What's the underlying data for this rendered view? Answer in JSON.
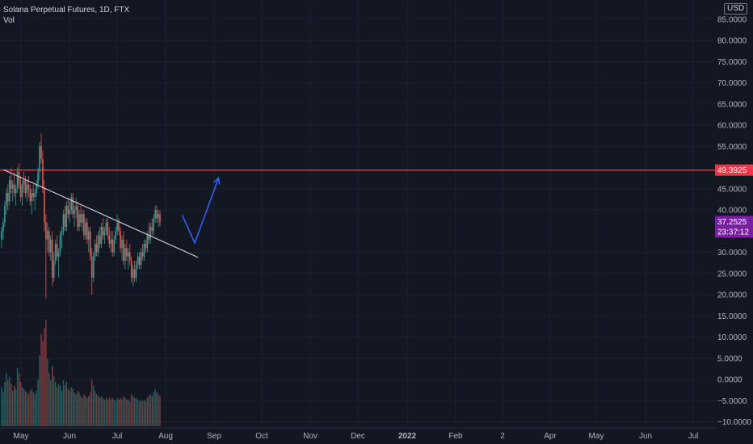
{
  "legend": {
    "symbol_line": "Solana Perpetual Futures, 1D, FTX",
    "volume_label": "Vol"
  },
  "currency_button": "USD",
  "colors": {
    "background": "#131722",
    "up": "#26a69a",
    "down": "#ef5350",
    "horizontal_line": "#f23645",
    "arrow": "#2962ff",
    "trendline": "#d1d4dc",
    "price_badge": "#7b1fa2"
  },
  "chart_data": {
    "type": "candlestick",
    "symbol": "Solana Perpetual Futures",
    "interval": "1D",
    "exchange": "FTX",
    "y_axis": {
      "ticks": [
        "85.0000",
        "80.0000",
        "75.0000",
        "70.0000",
        "65.0000",
        "60.0000",
        "55.0000",
        "45.0000",
        "40.0000",
        "30.0000",
        "25.0000",
        "20.0000",
        "15.0000",
        "10.0000",
        "5.0000",
        "0.0000",
        "−5.0000",
        "−10.0000"
      ],
      "ylim": [
        -12,
        86
      ]
    },
    "x_axis": {
      "ticks": [
        "May",
        "Jun",
        "Jul",
        "Aug",
        "Sep",
        "Oct",
        "Nov",
        "Dec",
        "2022",
        "Feb",
        "2",
        "Apr",
        "May",
        "Jun",
        "Jul"
      ]
    },
    "horizontal_line": {
      "value": 49.3925,
      "label": "49.3925"
    },
    "last_price": {
      "value": 37.2525,
      "label": "37.2525",
      "countdown": "23:37:12"
    },
    "trendline": {
      "points": [
        [
          1,
          49.5
        ],
        [
          124,
          28.8
        ]
      ]
    },
    "projection_arrow": {
      "points": [
        [
          114,
          38.8
        ],
        [
          122,
          32.2
        ],
        [
          137,
          47.5
        ]
      ]
    },
    "candles_start_day": 0,
    "candles": [
      [
        33,
        36,
        31,
        35,
        220
      ],
      [
        35,
        38,
        33,
        37,
        190
      ],
      [
        37,
        42,
        36,
        41,
        250
      ],
      [
        41,
        45,
        39,
        44,
        300
      ],
      [
        44,
        46,
        40,
        42,
        260
      ],
      [
        42,
        48,
        41,
        47,
        280
      ],
      [
        47,
        50,
        44,
        45,
        240
      ],
      [
        45,
        47,
        42,
        46,
        200
      ],
      [
        46,
        49,
        43,
        44,
        230
      ],
      [
        44,
        46,
        41,
        45,
        210
      ],
      [
        45,
        50,
        44,
        49,
        330
      ],
      [
        49,
        51,
        45,
        46,
        300
      ],
      [
        46,
        48,
        42,
        43,
        250
      ],
      [
        43,
        47,
        41,
        46,
        220
      ],
      [
        46,
        49,
        44,
        47,
        210
      ],
      [
        47,
        48,
        43,
        44,
        200
      ],
      [
        44,
        47,
        42,
        46,
        190
      ],
      [
        46,
        48,
        43,
        45,
        180
      ],
      [
        45,
        46,
        41,
        42,
        200
      ],
      [
        42,
        45,
        39,
        44,
        210
      ],
      [
        44,
        46,
        42,
        43,
        190
      ],
      [
        43,
        45,
        40,
        44,
        180
      ],
      [
        44,
        47,
        43,
        46,
        200
      ],
      [
        46,
        50,
        45,
        49,
        260
      ],
      [
        49,
        56,
        47,
        55,
        400
      ],
      [
        55,
        58,
        51,
        52,
        520
      ],
      [
        52,
        54,
        44,
        45,
        480
      ],
      [
        45,
        47,
        35,
        37,
        550
      ],
      [
        37,
        39,
        19,
        33,
        600
      ],
      [
        33,
        37,
        30,
        35,
        380
      ],
      [
        35,
        36,
        29,
        30,
        300
      ],
      [
        30,
        34,
        28,
        33,
        260
      ],
      [
        33,
        35,
        22,
        24,
        340
      ],
      [
        24,
        30,
        23,
        28,
        280
      ],
      [
        28,
        33,
        27,
        32,
        250
      ],
      [
        32,
        34,
        28,
        29,
        220
      ],
      [
        29,
        31,
        24,
        30,
        240
      ],
      [
        30,
        35,
        29,
        34,
        230
      ],
      [
        34,
        36,
        31,
        35,
        200
      ],
      [
        35,
        40,
        34,
        39,
        260
      ],
      [
        39,
        41,
        35,
        36,
        230
      ],
      [
        36,
        42,
        35,
        41,
        250
      ],
      [
        41,
        43,
        38,
        39,
        210
      ],
      [
        39,
        42,
        37,
        40,
        200
      ],
      [
        40,
        44,
        39,
        43,
        220
      ],
      [
        43,
        44,
        38,
        39,
        210
      ],
      [
        39,
        41,
        36,
        40,
        190
      ],
      [
        40,
        43,
        38,
        41,
        180
      ],
      [
        41,
        42,
        35,
        36,
        200
      ],
      [
        36,
        40,
        35,
        39,
        190
      ],
      [
        39,
        41,
        36,
        37,
        170
      ],
      [
        37,
        40,
        35,
        39,
        160
      ],
      [
        39,
        40,
        33,
        34,
        180
      ],
      [
        34,
        38,
        33,
        37,
        170
      ],
      [
        37,
        38,
        32,
        33,
        160
      ],
      [
        33,
        36,
        30,
        35,
        170
      ],
      [
        35,
        36,
        28,
        29,
        190
      ],
      [
        29,
        31,
        20,
        24,
        260
      ],
      [
        24,
        30,
        23,
        29,
        230
      ],
      [
        29,
        33,
        28,
        32,
        200
      ],
      [
        32,
        34,
        29,
        30,
        180
      ],
      [
        30,
        35,
        29,
        34,
        170
      ],
      [
        34,
        36,
        31,
        32,
        160
      ],
      [
        32,
        37,
        31,
        36,
        170
      ],
      [
        36,
        38,
        33,
        34,
        160
      ],
      [
        34,
        36,
        32,
        35,
        150
      ],
      [
        35,
        38,
        34,
        37,
        160
      ],
      [
        37,
        38,
        33,
        34,
        150
      ],
      [
        34,
        36,
        31,
        32,
        160
      ],
      [
        32,
        35,
        30,
        33,
        150
      ],
      [
        33,
        35,
        29,
        30,
        160
      ],
      [
        30,
        34,
        29,
        33,
        150
      ],
      [
        33,
        36,
        32,
        35,
        140
      ],
      [
        35,
        39,
        34,
        37,
        160
      ],
      [
        37,
        38,
        34,
        35,
        150
      ],
      [
        35,
        36,
        30,
        31,
        160
      ],
      [
        31,
        34,
        28,
        33,
        150
      ],
      [
        33,
        35,
        27,
        28,
        170
      ],
      [
        28,
        32,
        26,
        31,
        160
      ],
      [
        31,
        33,
        28,
        29,
        150
      ],
      [
        29,
        31,
        26,
        30,
        150
      ],
      [
        30,
        32,
        27,
        28,
        140
      ],
      [
        28,
        29,
        23,
        24,
        180
      ],
      [
        24,
        27,
        22,
        26,
        170
      ],
      [
        26,
        28,
        23,
        24,
        160
      ],
      [
        24,
        28,
        23,
        27,
        160
      ],
      [
        27,
        30,
        26,
        29,
        150
      ],
      [
        29,
        30,
        26,
        27,
        140
      ],
      [
        27,
        31,
        26,
        30,
        150
      ],
      [
        30,
        32,
        28,
        29,
        140
      ],
      [
        29,
        33,
        28,
        32,
        150
      ],
      [
        32,
        33,
        30,
        31,
        140
      ],
      [
        31,
        35,
        30,
        34,
        160
      ],
      [
        34,
        37,
        32,
        33,
        170
      ],
      [
        33,
        37,
        32,
        36,
        180
      ],
      [
        36,
        38,
        34,
        35,
        170
      ],
      [
        35,
        39,
        34,
        38,
        190
      ],
      [
        38,
        41,
        37,
        40,
        210
      ],
      [
        40,
        41,
        37,
        38,
        190
      ],
      [
        38,
        40,
        36,
        39,
        180
      ],
      [
        39,
        40,
        36,
        37,
        170
      ]
    ]
  }
}
